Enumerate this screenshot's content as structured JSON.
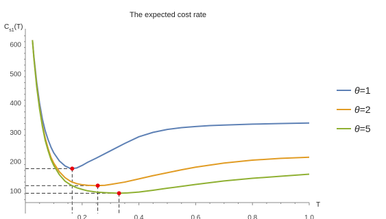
{
  "chart_data": {
    "type": "line",
    "title": "The expected cost rate",
    "xlabel": "T",
    "ylabel_main": "C",
    "ylabel_sub": "s1",
    "ylabel_arg": "(T)",
    "xlim": [
      0.0,
      1.0
    ],
    "ylim": [
      60,
      640
    ],
    "xticks": [
      0.2,
      0.4,
      0.6,
      0.8,
      1.0
    ],
    "xtick_labels": [
      "0.2",
      "0.4",
      "0.6",
      "0.8",
      "1.0"
    ],
    "yticks": [
      100,
      200,
      300,
      400,
      500,
      600
    ],
    "ytick_labels": [
      "100",
      "200",
      "300",
      "400",
      "500",
      "600"
    ],
    "legend_position": "right",
    "series": [
      {
        "name": "θ=1",
        "theta_symbol": "θ",
        "theta_value": "=1",
        "color": "#5e81b5",
        "x": [
          0.025,
          0.03,
          0.04,
          0.05,
          0.06,
          0.07,
          0.08,
          0.09,
          0.1,
          0.12,
          0.14,
          0.16,
          0.18,
          0.2,
          0.22,
          0.25,
          0.3,
          0.35,
          0.4,
          0.45,
          0.5,
          0.55,
          0.6,
          0.65,
          0.7,
          0.8,
          0.9,
          1.0
        ],
        "y": [
          615,
          560,
          470,
          400,
          345,
          305,
          275,
          250,
          230,
          202,
          185,
          176,
          178,
          187,
          198,
          212,
          237,
          262,
          285,
          300,
          310,
          316,
          320,
          323,
          325,
          328,
          330,
          332
        ]
      },
      {
        "name": "θ=2",
        "theta_symbol": "θ",
        "theta_value": "=2",
        "color": "#e19c24",
        "x": [
          0.025,
          0.03,
          0.04,
          0.05,
          0.06,
          0.07,
          0.08,
          0.09,
          0.1,
          0.12,
          0.14,
          0.16,
          0.18,
          0.2,
          0.22,
          0.25,
          0.28,
          0.3,
          0.35,
          0.4,
          0.45,
          0.5,
          0.55,
          0.6,
          0.7,
          0.8,
          0.9,
          1.0
        ],
        "y": [
          615,
          555,
          460,
          385,
          325,
          280,
          245,
          215,
          195,
          165,
          145,
          132,
          125,
          121,
          119,
          118,
          119,
          122,
          130,
          141,
          152,
          162,
          172,
          181,
          195,
          205,
          211,
          215
        ]
      },
      {
        "name": "θ=5",
        "theta_symbol": "θ",
        "theta_value": "=5",
        "color": "#8fb032",
        "x": [
          0.025,
          0.03,
          0.04,
          0.05,
          0.06,
          0.07,
          0.08,
          0.09,
          0.1,
          0.12,
          0.14,
          0.16,
          0.18,
          0.2,
          0.22,
          0.25,
          0.28,
          0.3,
          0.33,
          0.36,
          0.4,
          0.45,
          0.5,
          0.6,
          0.7,
          0.8,
          0.9,
          1.0
        ],
        "y": [
          615,
          553,
          455,
          380,
          320,
          272,
          238,
          208,
          187,
          155,
          133,
          120,
          111,
          105,
          100,
          96,
          94,
          93,
          92,
          93,
          96,
          102,
          109,
          122,
          134,
          143,
          150,
          157
        ]
      }
    ],
    "optimum_points": [
      {
        "x": 0.165,
        "y": 176
      },
      {
        "x": 0.255,
        "y": 118
      },
      {
        "x": 0.33,
        "y": 92
      }
    ],
    "marker_color": "#e8000b"
  }
}
